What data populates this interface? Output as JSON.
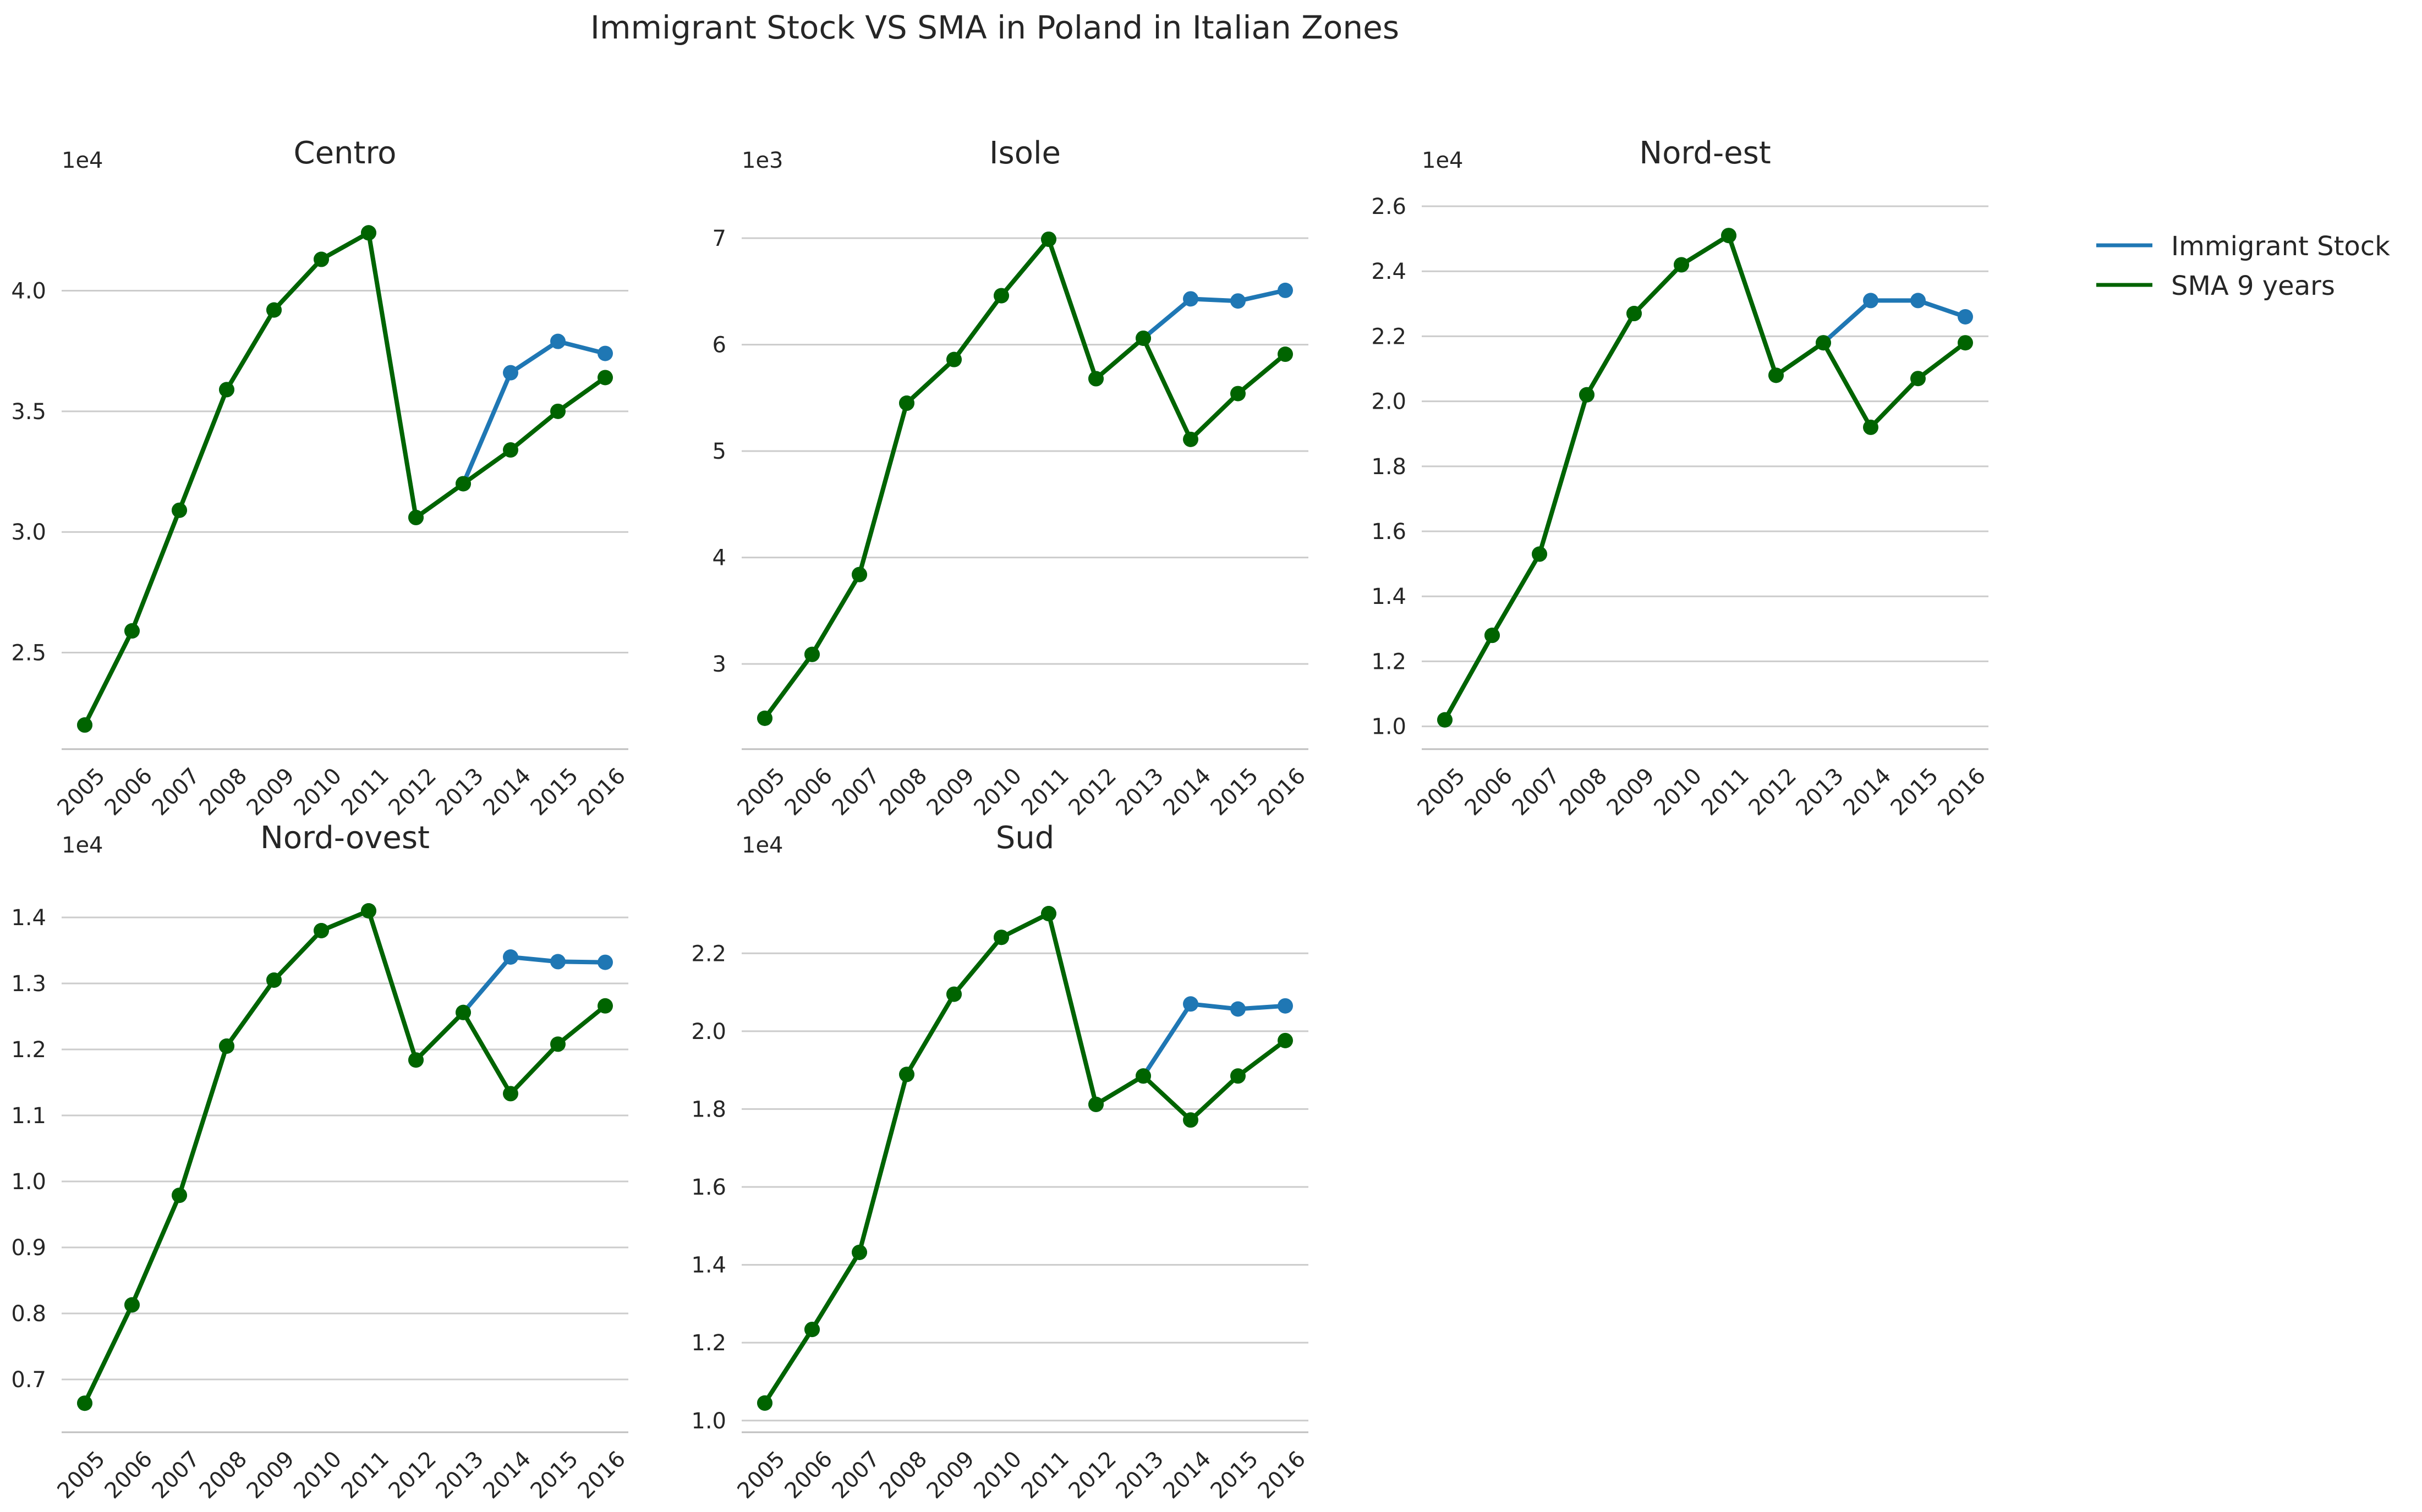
{
  "suptitle": "Immigrant Stock VS SMA in Poland in Italian Zones",
  "legend": {
    "position": "upper-right",
    "entries": [
      "Immigrant Stock",
      "SMA 9 years"
    ]
  },
  "colors": {
    "stock": "#1f77b4",
    "sma": "#006400",
    "grid": "#cccccc",
    "axis": "#bfbfbf",
    "text": "#262626"
  },
  "chart_data": [
    {
      "type": "line",
      "title": "Centro",
      "multiplier_label": "1e4",
      "x": [
        "2005",
        "2006",
        "2007",
        "2008",
        "2009",
        "2010",
        "2011",
        "2012",
        "2013",
        "2014",
        "2015",
        "2016"
      ],
      "yticks": [
        "2.5",
        "3.0",
        "3.5",
        "4.0"
      ],
      "ytick_values": [
        2.5,
        3.0,
        3.5,
        4.0
      ],
      "ylim": [
        2.1,
        4.35
      ],
      "grid": true,
      "series": [
        {
          "name": "Immigrant Stock",
          "values": [
            2.2,
            2.59,
            3.09,
            3.59,
            3.92,
            4.13,
            4.24,
            3.06,
            3.2,
            3.66,
            3.79,
            3.74
          ]
        },
        {
          "name": "SMA 9 years",
          "values": [
            2.2,
            2.59,
            3.09,
            3.59,
            3.92,
            4.13,
            4.24,
            3.06,
            3.2,
            3.34,
            3.5,
            3.64
          ]
        }
      ]
    },
    {
      "type": "line",
      "title": "Isole",
      "multiplier_label": "1e3",
      "x": [
        "2005",
        "2006",
        "2007",
        "2008",
        "2009",
        "2010",
        "2011",
        "2012",
        "2013",
        "2014",
        "2015",
        "2016"
      ],
      "yticks": [
        "3",
        "4",
        "5",
        "6",
        "7"
      ],
      "ytick_values": [
        3,
        4,
        5,
        6,
        7
      ],
      "ylim": [
        2.2,
        7.3
      ],
      "grid": true,
      "series": [
        {
          "name": "Immigrant Stock",
          "values": [
            2.49,
            3.09,
            3.84,
            5.45,
            5.86,
            6.46,
            6.99,
            5.68,
            6.06,
            6.43,
            6.41,
            6.51
          ]
        },
        {
          "name": "SMA 9 years",
          "values": [
            2.49,
            3.09,
            3.84,
            5.45,
            5.86,
            6.46,
            6.99,
            5.68,
            6.06,
            5.11,
            5.54,
            5.91
          ]
        }
      ]
    },
    {
      "type": "line",
      "title": "Nord-est",
      "multiplier_label": "1e4",
      "x": [
        "2005",
        "2006",
        "2007",
        "2008",
        "2009",
        "2010",
        "2011",
        "2012",
        "2013",
        "2014",
        "2015",
        "2016"
      ],
      "yticks": [
        "1.0",
        "1.2",
        "1.4",
        "1.6",
        "1.8",
        "2.0",
        "2.2",
        "2.4",
        "2.6"
      ],
      "ytick_values": [
        1.0,
        1.2,
        1.4,
        1.6,
        1.8,
        2.0,
        2.2,
        2.4,
        2.6
      ],
      "ylim": [
        0.93,
        2.6
      ],
      "grid": true,
      "series": [
        {
          "name": "Immigrant Stock",
          "values": [
            1.02,
            1.28,
            1.53,
            2.02,
            2.27,
            2.42,
            2.51,
            2.08,
            2.18,
            2.31,
            2.31,
            2.26
          ]
        },
        {
          "name": "SMA 9 years",
          "values": [
            1.02,
            1.28,
            1.53,
            2.02,
            2.27,
            2.42,
            2.51,
            2.08,
            2.18,
            1.92,
            2.07,
            2.18
          ]
        }
      ]
    },
    {
      "type": "line",
      "title": "Nord-ovest",
      "multiplier_label": "1e4",
      "x": [
        "2005",
        "2006",
        "2007",
        "2008",
        "2009",
        "2010",
        "2011",
        "2012",
        "2013",
        "2014",
        "2015",
        "2016"
      ],
      "yticks": [
        "0.7",
        "0.8",
        "0.9",
        "1.0",
        "1.1",
        "1.2",
        "1.3",
        "1.4"
      ],
      "ytick_values": [
        0.7,
        0.8,
        0.9,
        1.0,
        1.1,
        1.2,
        1.3,
        1.4
      ],
      "ylim": [
        0.62,
        1.44
      ],
      "grid": true,
      "series": [
        {
          "name": "Immigrant Stock",
          "values": [
            0.664,
            0.813,
            0.979,
            1.205,
            1.305,
            1.38,
            1.41,
            1.184,
            1.256,
            1.34,
            1.333,
            1.332
          ]
        },
        {
          "name": "SMA 9 years",
          "values": [
            0.664,
            0.813,
            0.979,
            1.205,
            1.305,
            1.38,
            1.41,
            1.184,
            1.256,
            1.133,
            1.208,
            1.266
          ]
        }
      ]
    },
    {
      "type": "line",
      "title": "Sud",
      "multiplier_label": "1e4",
      "x": [
        "2005",
        "2006",
        "2007",
        "2008",
        "2009",
        "2010",
        "2011",
        "2012",
        "2013",
        "2014",
        "2015",
        "2016"
      ],
      "yticks": [
        "1.0",
        "1.2",
        "1.4",
        "1.6",
        "1.8",
        "2.0",
        "2.2"
      ],
      "ytick_values": [
        1.0,
        1.2,
        1.4,
        1.6,
        1.8,
        2.0,
        2.2
      ],
      "ylim": [
        0.97,
        2.36
      ],
      "grid": true,
      "series": [
        {
          "name": "Immigrant Stock",
          "values": [
            1.045,
            1.234,
            1.432,
            1.889,
            2.095,
            2.241,
            2.302,
            1.812,
            1.885,
            2.07,
            2.057,
            2.065
          ]
        },
        {
          "name": "SMA 9 years",
          "values": [
            1.045,
            1.234,
            1.432,
            1.889,
            2.095,
            2.241,
            2.302,
            1.812,
            1.885,
            1.772,
            1.885,
            1.976
          ]
        }
      ]
    }
  ]
}
